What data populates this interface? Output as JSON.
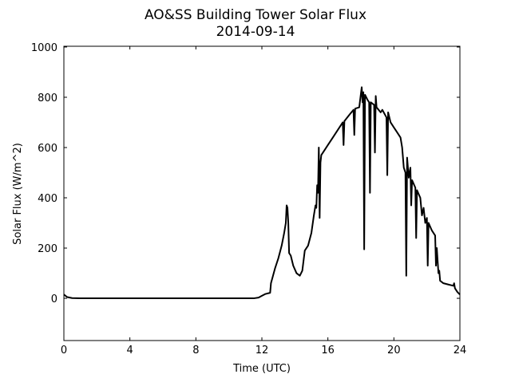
{
  "chart_data": {
    "type": "line",
    "title": "AO&SS Building Tower Solar Flux",
    "subtitle": "2014-09-14",
    "x_label": "Time (UTC)",
    "y_label": "Solar Flux (W/m^2)",
    "color": "#000000",
    "xlim": [
      0,
      24
    ],
    "xticks": [
      0,
      4,
      8,
      12,
      16,
      20,
      24
    ],
    "ylim": [
      -168,
      1003
    ],
    "yticks": [
      0,
      200,
      400,
      600,
      800,
      1000
    ],
    "x": [
      0,
      0.2,
      0.5,
      1,
      4,
      8,
      11.5,
      11.8,
      12,
      12.2,
      12.5,
      12.55,
      12.8,
      13,
      13.2,
      13.35,
      13.45,
      13.5,
      13.55,
      13.6,
      13.65,
      13.75,
      13.9,
      14.1,
      14.3,
      14.45,
      14.6,
      14.8,
      15,
      15.15,
      15.25,
      15.3,
      15.35,
      15.4,
      15.45,
      15.5,
      15.55,
      15.6,
      15.8,
      16,
      16.3,
      16.6,
      16.9,
      16.95,
      17,
      17.3,
      17.55,
      17.6,
      17.65,
      17.9,
      18.05,
      18.1,
      18.15,
      18.2,
      18.25,
      18.4,
      18.5,
      18.55,
      18.6,
      18.8,
      18.85,
      18.9,
      18.95,
      19.2,
      19.3,
      19.55,
      19.6,
      19.65,
      19.8,
      20,
      20.2,
      20.4,
      20.5,
      20.6,
      20.7,
      20.75,
      20.8,
      20.9,
      21,
      21.05,
      21.1,
      21.3,
      21.35,
      21.4,
      21.6,
      21.7,
      21.8,
      21.9,
      22,
      22.05,
      22.1,
      22.3,
      22.5,
      22.55,
      22.6,
      22.7,
      22.75,
      22.8,
      23,
      23.3,
      23.6,
      23.65,
      23.7,
      23.85,
      24
    ],
    "values": [
      15,
      5,
      1,
      0,
      0,
      0,
      0,
      3,
      10,
      17,
      22,
      60,
      120,
      160,
      210,
      260,
      300,
      370,
      360,
      300,
      180,
      170,
      130,
      100,
      90,
      110,
      190,
      210,
      260,
      330,
      370,
      360,
      450,
      420,
      600,
      320,
      540,
      570,
      590,
      610,
      640,
      670,
      700,
      610,
      705,
      730,
      750,
      650,
      755,
      760,
      840,
      780,
      820,
      195,
      810,
      790,
      780,
      420,
      780,
      770,
      580,
      805,
      760,
      740,
      750,
      720,
      490,
      740,
      700,
      680,
      660,
      640,
      600,
      520,
      500,
      90,
      560,
      480,
      520,
      370,
      470,
      440,
      240,
      430,
      400,
      330,
      360,
      300,
      320,
      130,
      300,
      270,
      250,
      130,
      200,
      100,
      110,
      70,
      60,
      55,
      50,
      60,
      40,
      25,
      15
    ]
  }
}
